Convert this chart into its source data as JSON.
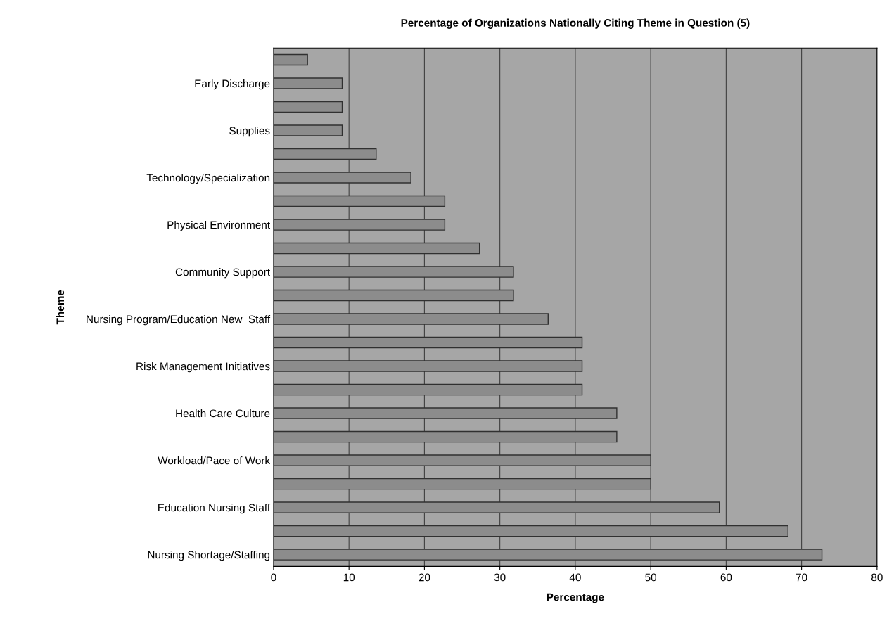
{
  "chart_data": {
    "type": "bar",
    "orientation": "horizontal",
    "title": "Percentage of Organizations Nationally Citing Theme in Question (5)",
    "xlabel": "Percentage",
    "ylabel": "Theme",
    "categories": [
      null,
      "Early Discharge",
      null,
      "Supplies",
      null,
      "Technology/Specialization",
      null,
      "Physical Environment",
      null,
      "Community Support",
      null,
      "Nursing Program/Education New  Staff",
      null,
      "Risk Management Initiatives",
      null,
      "Health Care Culture",
      null,
      "Workload/Pace of Work",
      null,
      "Education Nursing Staff",
      null,
      "Nursing Shortage/Staffing"
    ],
    "values": [
      4.5,
      9.1,
      9.1,
      9.1,
      13.6,
      18.2,
      22.7,
      22.7,
      27.3,
      31.8,
      31.8,
      36.4,
      40.9,
      40.9,
      40.9,
      45.5,
      45.5,
      50,
      50,
      59.1,
      68.2,
      72.7
    ],
    "color": "#8c8c8c",
    "xlim": [
      0,
      80
    ],
    "xticks": [
      0,
      10,
      20,
      30,
      40,
      50,
      60,
      70,
      80
    ],
    "grid": "x"
  }
}
